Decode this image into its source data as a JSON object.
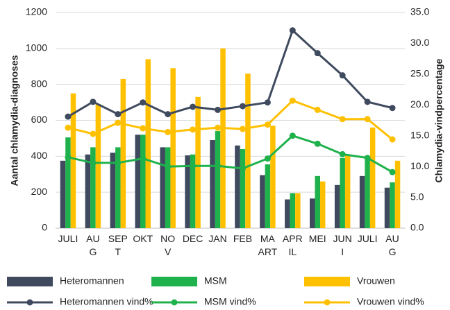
{
  "chart_data": {
    "type": "bar_line",
    "ylabel": "Aantal chlamydia-diagnoses",
    "y2label": "Chlamydia-vindpercentage",
    "categories": [
      "JULI",
      "AU\nG",
      "SEP\nT",
      "OKT",
      "NO\nV",
      "DEC",
      "JAN",
      "FEB",
      "MA\nART",
      "APR\nIL",
      "MEI",
      "JUN\nI",
      "JULI",
      "AU\nG"
    ],
    "ylim": [
      0,
      1200
    ],
    "yticks": [
      0,
      200,
      400,
      600,
      800,
      1000,
      1200
    ],
    "y2lim": [
      0,
      35
    ],
    "y2ticks": [
      {
        "value": 0,
        "label": "0.0"
      },
      {
        "value": 5,
        "label": "5.0"
      },
      {
        "value": 10,
        "label": "10.0"
      },
      {
        "value": 15,
        "label": "15.0"
      },
      {
        "value": 20,
        "label": "20.0"
      },
      {
        "value": 25,
        "label": "25.0"
      },
      {
        "value": 30,
        "label": "30.0"
      },
      {
        "value": 35,
        "label": "35.0"
      }
    ],
    "grid": true,
    "series": [
      {
        "name": "Heteromannen",
        "type": "bar",
        "color": "#3f4a5e",
        "values": [
          375,
          410,
          420,
          520,
          450,
          405,
          490,
          460,
          295,
          160,
          165,
          240,
          290,
          225
        ]
      },
      {
        "name": "MSM",
        "type": "bar",
        "color": "#1fb24c",
        "values": [
          505,
          450,
          450,
          520,
          450,
          410,
          540,
          440,
          355,
          195,
          290,
          390,
          395,
          255
        ]
      },
      {
        "name": "Vrouwen",
        "type": "bar",
        "color": "#ffc000",
        "values": [
          750,
          690,
          830,
          940,
          890,
          730,
          1000,
          860,
          570,
          195,
          260,
          410,
          560,
          375
        ]
      },
      {
        "name": "Heteromannen vind%",
        "type": "line",
        "axis": "y2",
        "color": "#3f4a5e",
        "values": [
          18.1,
          20.5,
          18.5,
          20.4,
          18.5,
          19.7,
          19.2,
          19.8,
          20.4,
          32.1,
          28.4,
          24.8,
          20.5,
          19.5
        ]
      },
      {
        "name": "MSM vind%",
        "type": "line",
        "axis": "y2",
        "color": "#1fb24c",
        "values": [
          11.5,
          10.6,
          10.6,
          11.3,
          10.0,
          10.1,
          10.1,
          9.7,
          11.3,
          15.0,
          13.7,
          12.0,
          11.4,
          9.1
        ]
      },
      {
        "name": "Vrouwen vind%",
        "type": "line",
        "axis": "y2",
        "color": "#ffc000",
        "values": [
          16.3,
          15.3,
          17.1,
          16.2,
          15.6,
          16.0,
          16.3,
          16.1,
          16.8,
          20.7,
          19.2,
          17.7,
          17.7,
          14.4
        ]
      }
    ]
  }
}
